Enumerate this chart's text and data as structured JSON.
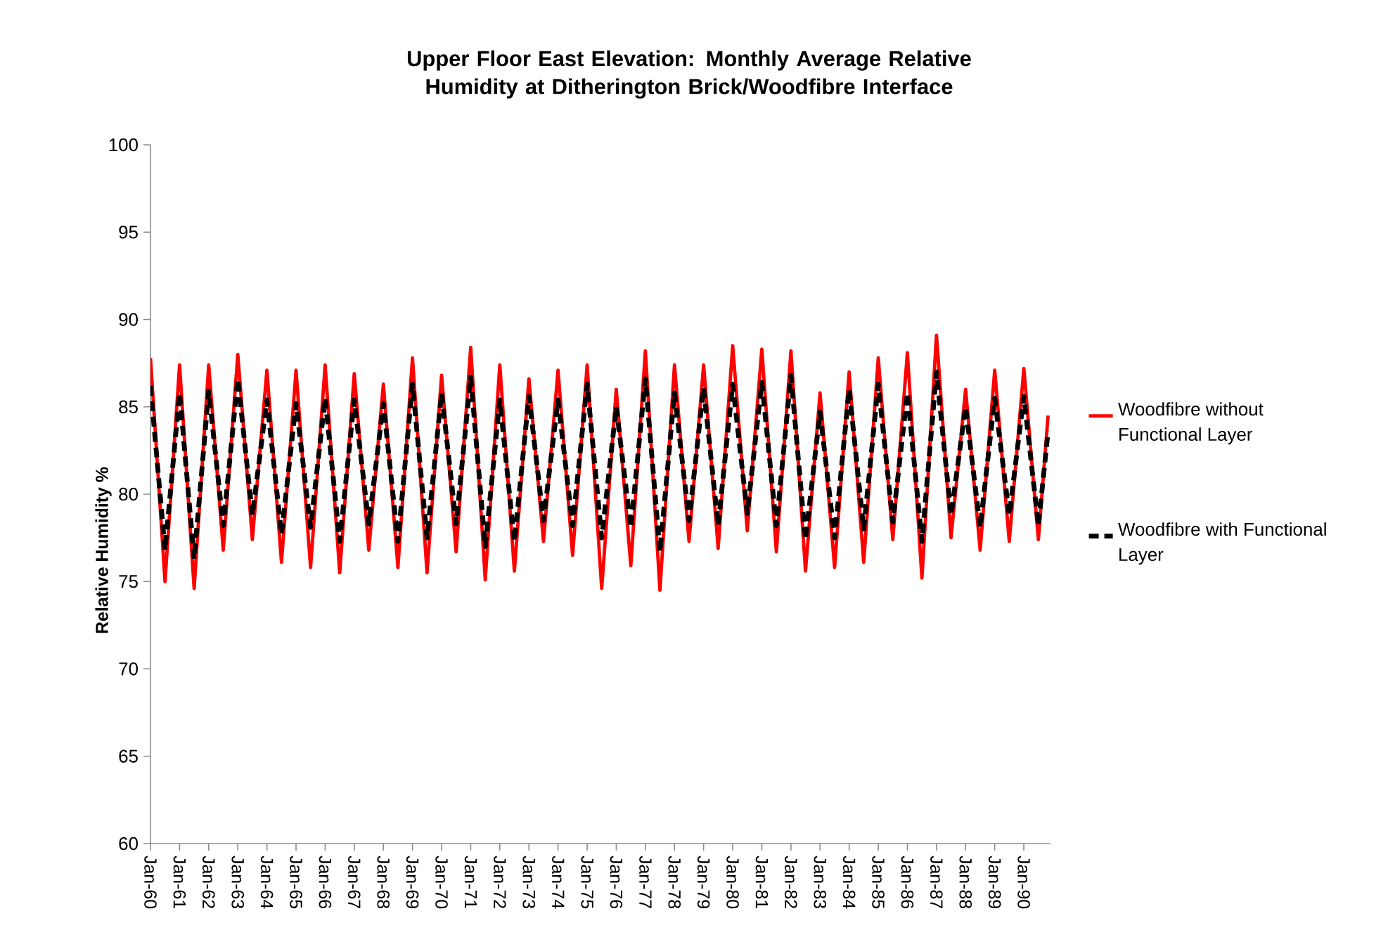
{
  "chart_data": {
    "type": "line",
    "title": "Upper Floor East Elevation: Monthly Average Relative Humidity at Ditherington Brick/Woodfibre Interface",
    "ylabel": "Relative Humidity %",
    "x": [
      "1960-01",
      "1960-07",
      "1961-01",
      "1961-07",
      "1962-01",
      "1962-07",
      "1963-01",
      "1963-07",
      "1964-01",
      "1964-07",
      "1965-01",
      "1965-07",
      "1966-01",
      "1966-07",
      "1967-01",
      "1967-07",
      "1968-01",
      "1968-07",
      "1969-01",
      "1969-07",
      "1970-01",
      "1970-07",
      "1971-01",
      "1971-07",
      "1972-01",
      "1972-07",
      "1973-01",
      "1973-07",
      "1974-01",
      "1974-07",
      "1975-01",
      "1975-07",
      "1976-01",
      "1976-07",
      "1977-01",
      "1977-07",
      "1978-01",
      "1978-07",
      "1979-01",
      "1979-07",
      "1980-01",
      "1980-07",
      "1981-01",
      "1981-07",
      "1982-01",
      "1982-07",
      "1983-01",
      "1983-07",
      "1984-01",
      "1984-07",
      "1985-01",
      "1985-07",
      "1986-01",
      "1986-07",
      "1987-01",
      "1987-07",
      "1988-01",
      "1988-07",
      "1989-01",
      "1989-07",
      "1990-01",
      "1990-07",
      "1990-11"
    ],
    "series": [
      {
        "name": "Woodfibre without Functional Layer",
        "color": "#ff0000",
        "line_style": "solid",
        "values": [
          87.8,
          75.0,
          87.4,
          74.6,
          87.4,
          76.8,
          88.0,
          77.4,
          87.1,
          76.1,
          87.1,
          75.8,
          87.4,
          75.5,
          86.9,
          76.8,
          86.3,
          75.8,
          87.8,
          75.5,
          86.8,
          76.7,
          88.4,
          75.1,
          87.4,
          75.6,
          86.6,
          77.3,
          87.1,
          76.5,
          87.4,
          74.6,
          86.0,
          75.9,
          88.2,
          74.5,
          87.4,
          77.3,
          87.4,
          76.9,
          88.5,
          77.9,
          88.3,
          76.7,
          88.2,
          75.6,
          85.8,
          75.8,
          87.0,
          76.1,
          87.8,
          77.4,
          88.1,
          75.2,
          89.1,
          77.5,
          86.0,
          76.8,
          87.1,
          77.3,
          87.2,
          77.4,
          84.5
        ]
      },
      {
        "name": "Woodfibre with Functional Layer",
        "color": "#000000",
        "line_style": "dashed",
        "values": [
          86.2,
          76.8,
          85.8,
          76.3,
          85.9,
          78.2,
          86.6,
          78.8,
          85.4,
          77.7,
          85.2,
          78.1,
          85.5,
          77.3,
          85.4,
          78.3,
          85.2,
          77.3,
          86.3,
          77.5,
          85.8,
          78.3,
          86.7,
          77.0,
          85.4,
          77.3,
          85.6,
          78.5,
          85.4,
          78.2,
          86.3,
          77.5,
          85.0,
          78.1,
          86.6,
          76.7,
          85.8,
          78.5,
          86.1,
          78.2,
          86.3,
          78.9,
          86.4,
          78.2,
          86.8,
          77.4,
          84.7,
          77.5,
          86.0,
          78.0,
          86.3,
          78.4,
          85.8,
          77.3,
          87.0,
          78.8,
          85.0,
          78.1,
          85.5,
          78.8,
          85.6,
          78.2,
          83.6
        ]
      }
    ],
    "xlim": [
      "1960-01",
      "1990-12"
    ],
    "xticks": [
      {
        "value": "1960-01",
        "label": "Jan-60"
      },
      {
        "value": "1961-01",
        "label": "Jan-61"
      },
      {
        "value": "1962-01",
        "label": "Jan-62"
      },
      {
        "value": "1963-01",
        "label": "Jan-63"
      },
      {
        "value": "1964-01",
        "label": "Jan-64"
      },
      {
        "value": "1965-01",
        "label": "Jan-65"
      },
      {
        "value": "1966-01",
        "label": "Jan-66"
      },
      {
        "value": "1967-01",
        "label": "Jan-67"
      },
      {
        "value": "1968-01",
        "label": "Jan-68"
      },
      {
        "value": "1969-01",
        "label": "Jan-69"
      },
      {
        "value": "1970-01",
        "label": "Jan-70"
      },
      {
        "value": "1971-01",
        "label": "Jan-71"
      },
      {
        "value": "1972-01",
        "label": "Jan-72"
      },
      {
        "value": "1973-01",
        "label": "Jan-73"
      },
      {
        "value": "1974-01",
        "label": "Jan-74"
      },
      {
        "value": "1975-01",
        "label": "Jan-75"
      },
      {
        "value": "1976-01",
        "label": "Jan-76"
      },
      {
        "value": "1977-01",
        "label": "Jan-77"
      },
      {
        "value": "1978-01",
        "label": "Jan-78"
      },
      {
        "value": "1979-01",
        "label": "Jan-79"
      },
      {
        "value": "1980-01",
        "label": "Jan-80"
      },
      {
        "value": "1981-01",
        "label": "Jan-81"
      },
      {
        "value": "1982-01",
        "label": "Jan-82"
      },
      {
        "value": "1983-01",
        "label": "Jan-83"
      },
      {
        "value": "1984-01",
        "label": "Jan-84"
      },
      {
        "value": "1985-01",
        "label": "Jan-85"
      },
      {
        "value": "1986-01",
        "label": "Jan-86"
      },
      {
        "value": "1987-01",
        "label": "Jan-87"
      },
      {
        "value": "1988-01",
        "label": "Jan-88"
      },
      {
        "value": "1989-01",
        "label": "Jan-89"
      },
      {
        "value": "1990-01",
        "label": "Jan-90"
      }
    ],
    "ylim": [
      60,
      100
    ],
    "yticks": [
      60,
      65,
      70,
      75,
      80,
      85,
      90,
      95,
      100
    ],
    "legend": "right",
    "marker": "none"
  }
}
